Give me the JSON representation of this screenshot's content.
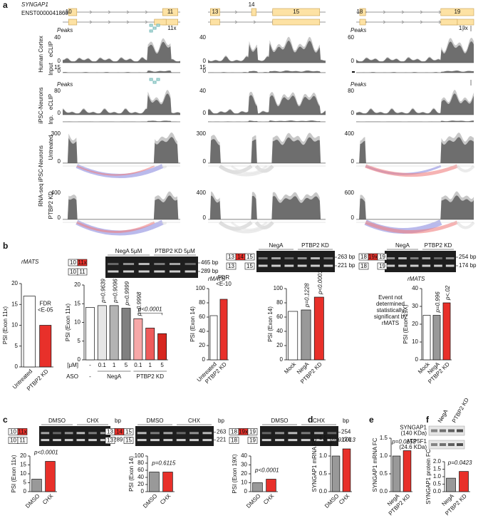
{
  "panel_labels": [
    "a",
    "b",
    "c",
    "d",
    "e",
    "f"
  ],
  "panel_a": {
    "gene": "SYNGAP1",
    "transcript": "ENST00000418600",
    "columns": [
      {
        "exons": [
          "10",
          "11"
        ],
        "alt_exon": "11x"
      },
      {
        "exons": [
          "13",
          "14",
          "15"
        ]
      },
      {
        "exons": [
          "18",
          "19"
        ],
        "alt_exon": "19x"
      }
    ],
    "peaks": "Peaks",
    "group_labels": [
      "Human Cortex",
      "iPSC-Neurons",
      "RNA-seq iPSC-Neurons"
    ],
    "tracks": [
      {
        "label": "eCLIP",
        "max": [
          40,
          40,
          60
        ]
      },
      {
        "label": "Input",
        "max": [
          15,
          15,
          null
        ]
      },
      {
        "label": "eCLIP",
        "max": [
          80,
          40,
          80
        ]
      },
      {
        "label": "Inp.",
        "max": [
          null,
          null,
          null
        ]
      },
      {
        "label": "Untreated",
        "max": [
          300,
          300,
          400
        ]
      },
      {
        "label": "PTBP2 KD",
        "max": [
          400,
          400,
          600
        ]
      }
    ],
    "zero": 0
  },
  "rmats": "rMATS",
  "gels": [
    {
      "lanes": [
        "NegA 5μM",
        "PTBP2 KD 5μM"
      ],
      "sizes": [
        "465 bp",
        "289 bp"
      ],
      "top": [
        "10",
        "11x"
      ],
      "bottom": [
        "10",
        "11"
      ]
    },
    {
      "lanes": [
        "NegA",
        "PTBP2 KD"
      ],
      "sizes": [
        "263 bp",
        "221 bp"
      ],
      "top": [
        "13",
        "14",
        "15"
      ],
      "bottom": [
        "13",
        "15"
      ]
    },
    {
      "lanes": [
        "NegA",
        "PTBP2 KD"
      ],
      "sizes": [
        "254 bp",
        "174 bp"
      ],
      "top": [
        "18",
        "19x",
        "19"
      ],
      "bottom": [
        "18",
        "19"
      ]
    },
    {
      "lanes": [
        "DMSO",
        "CHX"
      ],
      "unit": "bp",
      "sizes": [
        "465",
        "289"
      ],
      "top": [
        "10",
        "11x"
      ],
      "bottom": [
        "10",
        "11"
      ]
    },
    {
      "lanes": [
        "DMSO",
        "CHX"
      ],
      "unit": "bp",
      "sizes": [
        "263",
        "221"
      ],
      "top": [
        "13",
        "14",
        "15"
      ],
      "bottom": [
        "13",
        "15"
      ]
    },
    {
      "lanes": [
        "DMSO",
        "CHX"
      ],
      "unit": "bp",
      "sizes": [
        "254",
        "174"
      ],
      "top": [
        "18",
        "19x",
        "19"
      ],
      "bottom": [
        "18",
        "19"
      ]
    }
  ],
  "western": {
    "lanes": [
      "NegA",
      "PTBP2 KD"
    ],
    "proteins": [
      [
        "SYNGAP1",
        "(140 KDa)"
      ],
      [
        "ATP5F1",
        "(24.6 KDa)"
      ]
    ]
  },
  "plots": [
    {
      "type": "bar",
      "ylabel": "PSI (Exon 11x)",
      "categories": [
        "Untreated",
        "PTBP2 KD"
      ],
      "values": [
        17,
        10
      ],
      "colors": [
        "#ffffff",
        "#e8302a"
      ],
      "ylim": [
        0,
        20
      ],
      "yticks": [
        0,
        5,
        10,
        15,
        20
      ],
      "note": [
        "FDR",
        "<E-05"
      ]
    },
    {
      "type": "bar",
      "ylabel": "PSI (Exon 11x)",
      "categories": [
        "-",
        "0.1",
        "1",
        "5",
        "0.1",
        "1",
        "5"
      ],
      "values": [
        14,
        14.5,
        14.5,
        13.8,
        11,
        8.5,
        7
      ],
      "colors": [
        "#ffffff",
        "#e6e6e6",
        "#b3b3b3",
        "#808080",
        "#f7a8a8",
        "#ef5b5b",
        "#d7261e"
      ],
      "ylim": [
        0,
        20
      ],
      "yticks": [
        0,
        5,
        10,
        15,
        20
      ],
      "pvalues": [
        null,
        "p=0.9639",
        "p=0.9096",
        "p=0.9999",
        "p=0.9998",
        null,
        null
      ],
      "bracket": "p<0.0001",
      "unit": "[μM]",
      "aso": "ASO",
      "groups": [
        "-",
        "NegA",
        "PTBP2 KD"
      ]
    },
    {
      "type": "bar",
      "ylabel": "PSI (Exon 14)",
      "categories": [
        "Untreated",
        "PTBP2 KD"
      ],
      "values": [
        62,
        85
      ],
      "colors": [
        "#ffffff",
        "#e8302a"
      ],
      "ylim": [
        0,
        100
      ],
      "yticks": [
        0,
        20,
        40,
        60,
        80,
        100
      ],
      "note": [
        "FDR",
        "<E-10"
      ]
    },
    {
      "type": "bar",
      "ylabel": "PSI (Exon 14)",
      "categories": [
        "Mock",
        "NegA",
        "PTBP2 KD"
      ],
      "values": [
        68,
        70,
        88
      ],
      "colors": [
        "#ffffff",
        "#999999",
        "#e8302a"
      ],
      "ylim": [
        0,
        100
      ],
      "yticks": [
        0,
        20,
        40,
        60,
        80,
        100
      ],
      "pvalues": [
        null,
        "p=0.1228",
        "p<0.0001"
      ]
    },
    {
      "type": "bar",
      "ylabel": "PSI (Exon 19X)",
      "categories": [
        "Mock",
        "NegA",
        "PTBP2 KD"
      ],
      "values": [
        25,
        25,
        32
      ],
      "colors": [
        "#ffffff",
        "#999999",
        "#e8302a"
      ],
      "ylim": [
        0,
        40
      ],
      "yticks": [
        0,
        10,
        20,
        30,
        40
      ],
      "pvalues": [
        null,
        "p=0.996",
        "p<.02"
      ],
      "note": [
        "Event not",
        "determined",
        "statistically",
        "significant by",
        "rMATS"
      ]
    },
    {
      "type": "bar",
      "ylabel": "PSI (Exon 11x)",
      "categories": [
        "DMSO",
        "CHX"
      ],
      "values": [
        7,
        17
      ],
      "colors": [
        "#999999",
        "#e8302a"
      ],
      "ylim": [
        0,
        20
      ],
      "yticks": [
        0,
        5,
        10,
        15,
        20
      ],
      "pvalues": [
        null,
        "p<0.0001"
      ]
    },
    {
      "type": "bar",
      "ylabel": "PSI (Exon 14)",
      "categories": [
        "DMSO",
        "CHX"
      ],
      "values": [
        55,
        55
      ],
      "colors": [
        "#999999",
        "#e8302a"
      ],
      "ylim": [
        0,
        100
      ],
      "yticks": [
        0,
        20,
        40,
        60,
        80,
        100
      ],
      "pvalues": [
        null,
        "p=0.6115"
      ]
    },
    {
      "type": "bar",
      "ylabel": "PSI (Exon 19X)",
      "categories": [
        "DMSO",
        "CHX"
      ],
      "values": [
        10,
        14
      ],
      "colors": [
        "#999999",
        "#e8302a"
      ],
      "ylim": [
        0,
        40
      ],
      "yticks": [
        0,
        10,
        20,
        30,
        40
      ],
      "pvalues": [
        null,
        "p<0.0001"
      ]
    },
    {
      "type": "bar",
      "ylabel": "SYNGAP1 mRNA FC",
      "categories": [
        "DMSO",
        "CHX"
      ],
      "values": [
        1.0,
        1.2
      ],
      "colors": [
        "#999999",
        "#e8302a"
      ],
      "ylim": [
        0,
        1.5
      ],
      "yticks": [
        {
          "value": 0,
          "label": "0.0"
        },
        {
          "value": 0.5,
          "label": "0.5"
        },
        {
          "value": 1,
          "label": "1.0"
        },
        {
          "value": 1.5,
          "label": "1.5"
        }
      ],
      "pvalues": [
        null,
        "p=0.0013"
      ]
    },
    {
      "type": "bar",
      "ylabel": "SYNGAP1 mRNA FC",
      "categories": [
        "NegA",
        "PTBP2 KD"
      ],
      "values": [
        1.0,
        1.15
      ],
      "colors": [
        "#999999",
        "#e8302a"
      ],
      "ylim": [
        0,
        1.5
      ],
      "yticks": [
        {
          "value": 0,
          "label": "0.0"
        },
        {
          "value": 0.5,
          "label": "0.5"
        },
        {
          "value": 1,
          "label": "1.0"
        },
        {
          "value": 1.5,
          "label": "1.5"
        }
      ],
      "pvalues": [
        null,
        "p=0.0153"
      ]
    },
    {
      "type": "bar",
      "ylabel": "SYNGAP1 protein FC",
      "categories": [
        "NegA",
        "PTBP2 KD"
      ],
      "values": [
        0.9,
        1.35
      ],
      "colors": [
        "#999999",
        "#e8302a"
      ],
      "ylim": [
        0,
        2
      ],
      "yticks": [
        {
          "value": 0,
          "label": "0.0"
        },
        {
          "value": 0.5,
          "label": "0.5"
        },
        {
          "value": 1,
          "label": "1.0"
        },
        {
          "value": 1.5,
          "label": "1.5"
        },
        {
          "value": 2,
          "label": "2.0"
        }
      ],
      "pvalues": [
        null,
        "p=0.0423"
      ]
    }
  ]
}
